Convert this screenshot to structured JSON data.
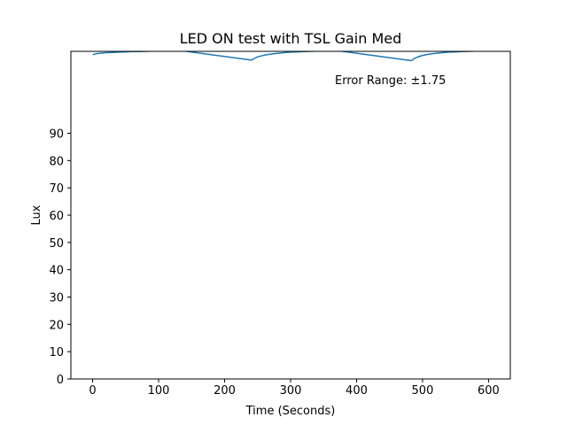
{
  "chart_data": {
    "type": "line",
    "title": "LED ON test with TSL Gain Med",
    "xlabel": "Time (Seconds)",
    "ylabel": "Lux",
    "xlim": [
      -33,
      633
    ],
    "ylim": [
      0,
      120
    ],
    "xticks": [
      0,
      100,
      200,
      300,
      400,
      500,
      600
    ],
    "yticks": [
      0,
      10,
      20,
      30,
      40,
      50,
      60,
      70,
      80,
      90
    ],
    "grid": false,
    "annotation": "Error Range: ±1.75",
    "series": [
      {
        "color": "#1f77b4",
        "x": [
          0,
          5,
          10,
          20,
          30,
          40,
          50,
          60,
          70,
          80,
          90,
          100,
          110,
          120,
          130,
          241,
          245,
          250,
          260,
          270,
          280,
          290,
          300,
          310,
          320,
          330,
          340,
          350,
          360,
          370,
          483,
          487,
          492,
          500,
          510,
          520,
          530,
          540,
          550,
          560,
          570,
          580,
          590
        ],
        "y": [
          118.8,
          119.1,
          119.3,
          119.5,
          119.6,
          119.7,
          119.8,
          119.9,
          119.95,
          120,
          120.1,
          120.1,
          120.2,
          120.3,
          120.4,
          116.8,
          117.4,
          118.0,
          118.6,
          119.0,
          119.3,
          119.5,
          119.7,
          119.8,
          119.9,
          120.0,
          120.1,
          120.2,
          120.2,
          120.3,
          116.6,
          117.3,
          117.9,
          118.5,
          119.0,
          119.3,
          119.5,
          119.7,
          119.8,
          119.9,
          120.0,
          120.1,
          120.1
        ]
      }
    ]
  }
}
